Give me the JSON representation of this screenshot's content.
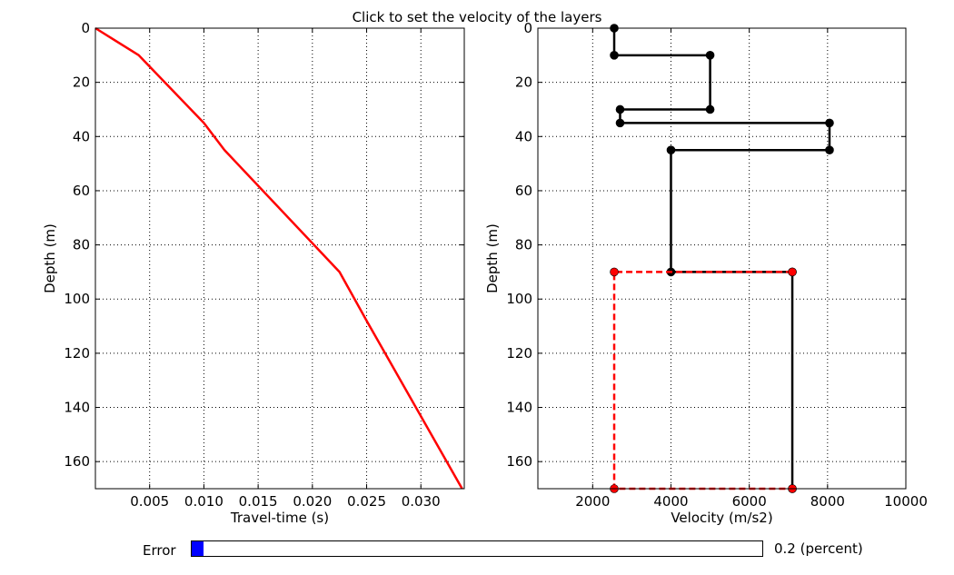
{
  "figure": {
    "title": "Click to set the velocity of the layers"
  },
  "chart_data": [
    {
      "type": "line",
      "xlabel": "Travel-time (s)",
      "ylabel": "Depth (m)",
      "xlim": [
        0.0,
        0.034
      ],
      "ylim": [
        170,
        0
      ],
      "x_ticks": [
        0.005,
        0.01,
        0.015,
        0.02,
        0.025,
        0.03
      ],
      "x_tick_labels": [
        "0.005",
        "0.010",
        "0.015",
        "0.020",
        "0.025",
        "0.030"
      ],
      "y_ticks": [
        0,
        20,
        40,
        60,
        80,
        100,
        120,
        140,
        160
      ],
      "y_tick_labels": [
        "0",
        "20",
        "40",
        "60",
        "80",
        "100",
        "120",
        "140",
        "160"
      ],
      "grid": true,
      "series": [
        {
          "color": "#ff0000",
          "style": "solid",
          "x": [
            0.0,
            0.004,
            0.01,
            0.0119,
            0.0225,
            0.025,
            0.0338
          ],
          "y": [
            0,
            10,
            35,
            45,
            90,
            108,
            170
          ]
        }
      ]
    },
    {
      "type": "line",
      "xlabel": "Velocity (m/s2)",
      "ylabel": "Depth (m)",
      "xlim": [
        600,
        10000
      ],
      "ylim": [
        170,
        0
      ],
      "x_ticks": [
        2000,
        4000,
        6000,
        8000,
        10000
      ],
      "x_tick_labels": [
        "2000",
        "4000",
        "6000",
        "8000",
        "10000"
      ],
      "y_ticks": [
        0,
        20,
        40,
        60,
        80,
        100,
        120,
        140,
        160
      ],
      "y_tick_labels": [
        "0",
        "20",
        "40",
        "60",
        "80",
        "100",
        "120",
        "140",
        "160"
      ],
      "grid": true,
      "series": [
        {
          "color": "#000000",
          "style": "solid",
          "markers": true,
          "x": [
            2550,
            2550,
            5000,
            5000,
            2700,
            2700,
            8050,
            8050,
            4000,
            4000,
            7100,
            7100
          ],
          "y": [
            0,
            10,
            10,
            30,
            30,
            35,
            35,
            45,
            45,
            90,
            90,
            170
          ]
        },
        {
          "color": "#ff0000",
          "style": "dashed",
          "markers": true,
          "x": [
            7100,
            2550,
            2550,
            7100
          ],
          "y": [
            90,
            90,
            170,
            170
          ]
        }
      ]
    }
  ],
  "slider": {
    "label": "Error",
    "value_text": "0.2 (percent)",
    "fraction": 0.02
  }
}
